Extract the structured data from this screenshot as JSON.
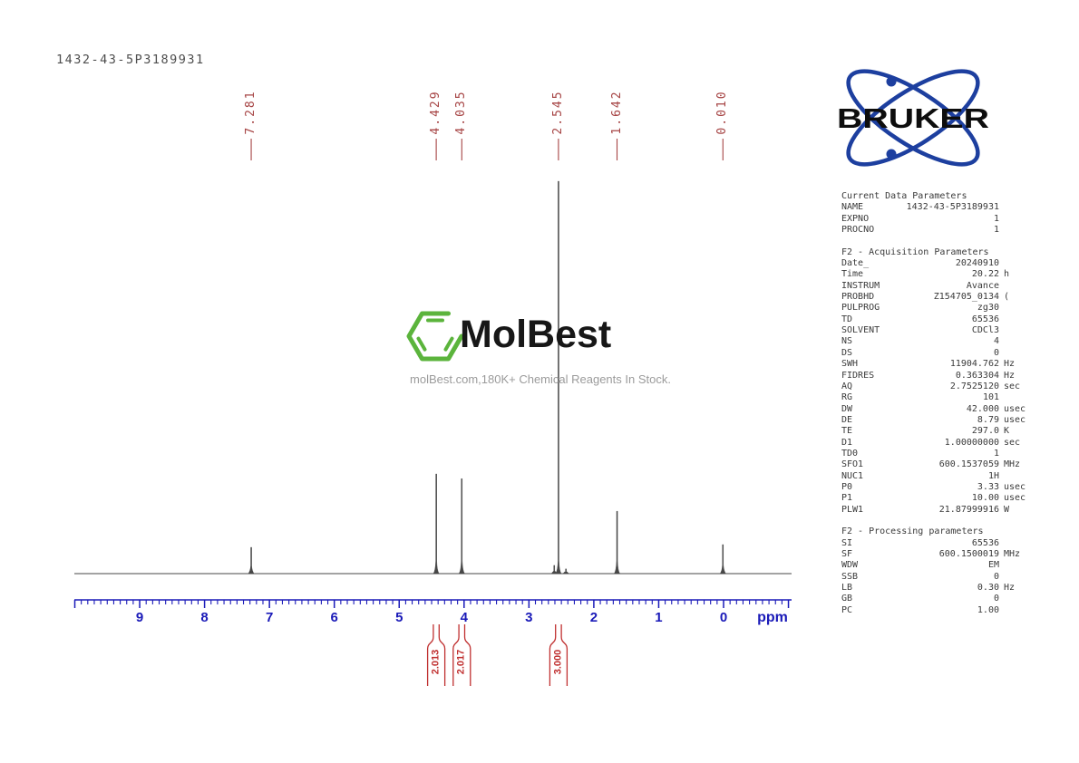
{
  "header": {
    "sample_id": "1432-43-5P3189931"
  },
  "bruker": {
    "brand": "BRUKER"
  },
  "watermark": {
    "logo_text": "MolBest",
    "tagline": "molBest.com,180K+ Chemical Reagents In Stock."
  },
  "chart_data": {
    "type": "line",
    "title": "1H NMR spectrum",
    "xlabel": "ppm",
    "x_axis": {
      "min": -1.05,
      "max": 10.0,
      "direction": "reversed",
      "major_tick_step": 1,
      "minor_tick_step": 0.1,
      "tick_labels": [
        "9",
        "8",
        "7",
        "6",
        "5",
        "4",
        "3",
        "2",
        "1",
        "0"
      ],
      "unit_label": "ppm"
    },
    "peaks": [
      {
        "ppm": 7.281,
        "label": "7.281",
        "rel_height": 0.067
      },
      {
        "ppm": 4.429,
        "label": "4.429",
        "rel_height": 0.254
      },
      {
        "ppm": 4.035,
        "label": "4.035",
        "rel_height": 0.242
      },
      {
        "ppm": 2.545,
        "label": "2.545",
        "rel_height": 1.0
      },
      {
        "ppm": 1.642,
        "label": "1.642",
        "rel_height": 0.159
      },
      {
        "ppm": 0.01,
        "label": "0.010",
        "rel_height": 0.074
      }
    ],
    "satellite_peaks": [
      {
        "ppm": 2.61,
        "rel_height": 0.021
      },
      {
        "ppm": 2.43,
        "rel_height": 0.012
      }
    ],
    "integrals": [
      {
        "label": "2.013",
        "ppm": 4.429
      },
      {
        "label": "2.017",
        "ppm": 4.035
      },
      {
        "label": "3.000",
        "ppm": 2.545
      }
    ],
    "colors": {
      "trace": "#474747",
      "axis": "#1a1ab8",
      "peak_labels": "#a64444",
      "integrals": "#c03030"
    }
  },
  "parameters": {
    "sections": [
      {
        "heading": "Current Data Parameters",
        "rows": [
          [
            "NAME",
            "1432-43-5P3189931",
            ""
          ],
          [
            "EXPNO",
            "1",
            ""
          ],
          [
            "PROCNO",
            "1",
            ""
          ]
        ]
      },
      {
        "heading": "F2 - Acquisition Parameters",
        "rows": [
          [
            "Date_",
            "20240910",
            ""
          ],
          [
            "Time",
            "20.22",
            "h"
          ],
          [
            "INSTRUM",
            "Avance",
            ""
          ],
          [
            "PROBHD",
            "Z154705_0134",
            "("
          ],
          [
            "PULPROG",
            "zg30",
            ""
          ],
          [
            "TD",
            "65536",
            ""
          ],
          [
            "SOLVENT",
            "CDCl3",
            ""
          ],
          [
            "NS",
            "4",
            ""
          ],
          [
            "DS",
            "0",
            ""
          ],
          [
            "SWH",
            "11904.762",
            "Hz"
          ],
          [
            "FIDRES",
            "0.363304",
            "Hz"
          ],
          [
            "AQ",
            "2.7525120",
            "sec"
          ],
          [
            "RG",
            "101",
            ""
          ],
          [
            "DW",
            "42.000",
            "usec"
          ],
          [
            "DE",
            "8.79",
            "usec"
          ],
          [
            "TE",
            "297.0",
            "K"
          ],
          [
            "D1",
            "1.00000000",
            "sec"
          ],
          [
            "TD0",
            "1",
            ""
          ],
          [
            "SFO1",
            "600.1537059",
            "MHz"
          ],
          [
            "NUC1",
            "1H",
            ""
          ],
          [
            "P0",
            "3.33",
            "usec"
          ],
          [
            "P1",
            "10.00",
            "usec"
          ],
          [
            "PLW1",
            "21.87999916",
            "W"
          ]
        ]
      },
      {
        "heading": "F2 - Processing parameters",
        "rows": [
          [
            "SI",
            "65536",
            ""
          ],
          [
            "SF",
            "600.1500019",
            "MHz"
          ],
          [
            "WDW",
            "EM",
            ""
          ],
          [
            "SSB",
            "0",
            ""
          ],
          [
            "LB",
            "0.30",
            "Hz"
          ],
          [
            "GB",
            "0",
            ""
          ],
          [
            "PC",
            "1.00",
            ""
          ]
        ]
      }
    ]
  }
}
